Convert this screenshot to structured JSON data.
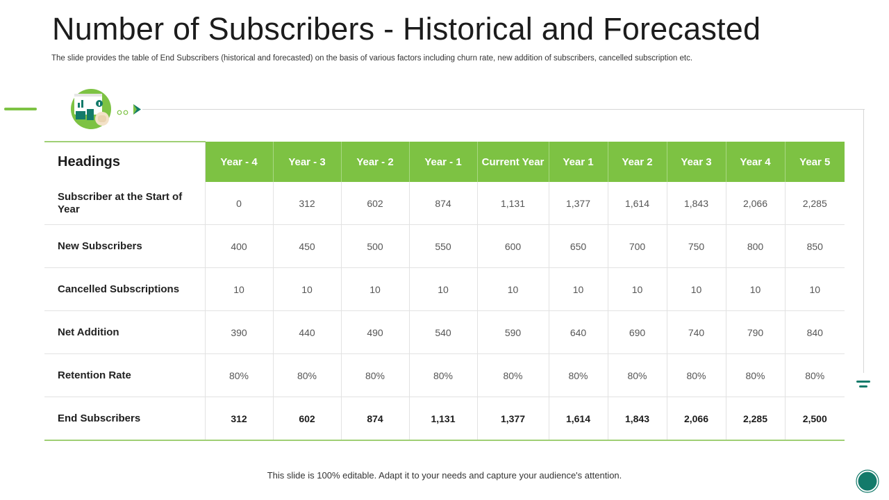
{
  "slide": {
    "title": "Number of Subscribers - Historical and Forecasted",
    "subtitle": "The slide provides the table of End Subscribers (historical and forecasted) on the basis of various factors including churn rate, new addition of subscribers, cancelled subscription etc.",
    "footer": "This slide is 100% editable. Adapt it to your needs and capture your audience's attention."
  },
  "colors": {
    "accent_green": "#7dc243",
    "teal": "#137a6a"
  },
  "icons": [
    "dashboard-icon",
    "dots-icon",
    "arrow-right-icon",
    "menu-icon",
    "nav-circle-icon"
  ],
  "table": {
    "heading": "Headings",
    "columns": [
      "Year - 4",
      "Year - 3",
      "Year - 2",
      "Year - 1",
      "Current Year",
      "Year 1",
      "Year 2",
      "Year 3",
      "Year 4",
      "Year 5"
    ],
    "rows": [
      {
        "label": "Subscriber at the Start of Year",
        "values": [
          "0",
          "312",
          "602",
          "874",
          "1,131",
          "1,377",
          "1,614",
          "1,843",
          "2,066",
          "2,285"
        ]
      },
      {
        "label": "New Subscribers",
        "values": [
          "400",
          "450",
          "500",
          "550",
          "600",
          "650",
          "700",
          "750",
          "800",
          "850"
        ]
      },
      {
        "label": "Cancelled Subscriptions",
        "values": [
          "10",
          "10",
          "10",
          "10",
          "10",
          "10",
          "10",
          "10",
          "10",
          "10"
        ]
      },
      {
        "label": "Net Addition",
        "values": [
          "390",
          "440",
          "490",
          "540",
          "590",
          "640",
          "690",
          "740",
          "790",
          "840"
        ]
      },
      {
        "label": "Retention Rate",
        "values": [
          "80%",
          "80%",
          "80%",
          "80%",
          "80%",
          "80%",
          "80%",
          "80%",
          "80%",
          "80%"
        ]
      },
      {
        "label": "End Subscribers",
        "values": [
          "312",
          "602",
          "874",
          "1,131",
          "1,377",
          "1,614",
          "1,843",
          "2,066",
          "2,285",
          "2,500"
        ]
      }
    ]
  }
}
